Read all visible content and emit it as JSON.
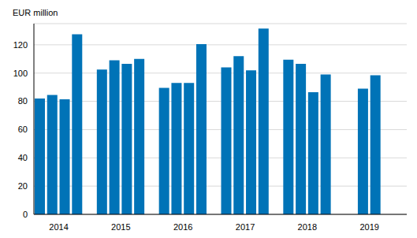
{
  "chart_data": {
    "type": "bar",
    "y_label": "EUR million",
    "categories": [
      null,
      "2014",
      null,
      null,
      null,
      null,
      "2015",
      null,
      null,
      null,
      null,
      "2016",
      null,
      null,
      null,
      null,
      "2017",
      null,
      null,
      null,
      null,
      "2018",
      null,
      null,
      null,
      null,
      "2019",
      null,
      null,
      null
    ],
    "values": [
      82,
      84.5,
      81.5,
      127.5,
      null,
      102.5,
      109,
      106.5,
      110,
      null,
      89.5,
      93,
      93,
      120.5,
      null,
      104,
      112,
      102,
      131.5,
      null,
      109.5,
      106.5,
      86.5,
      99,
      null,
      null,
      89,
      98.5,
      null,
      null
    ],
    "color": "#0073b7",
    "ylim": [
      0,
      135
    ],
    "yticks": [
      0,
      20,
      40,
      60,
      80,
      100,
      120
    ],
    "grid": true
  }
}
